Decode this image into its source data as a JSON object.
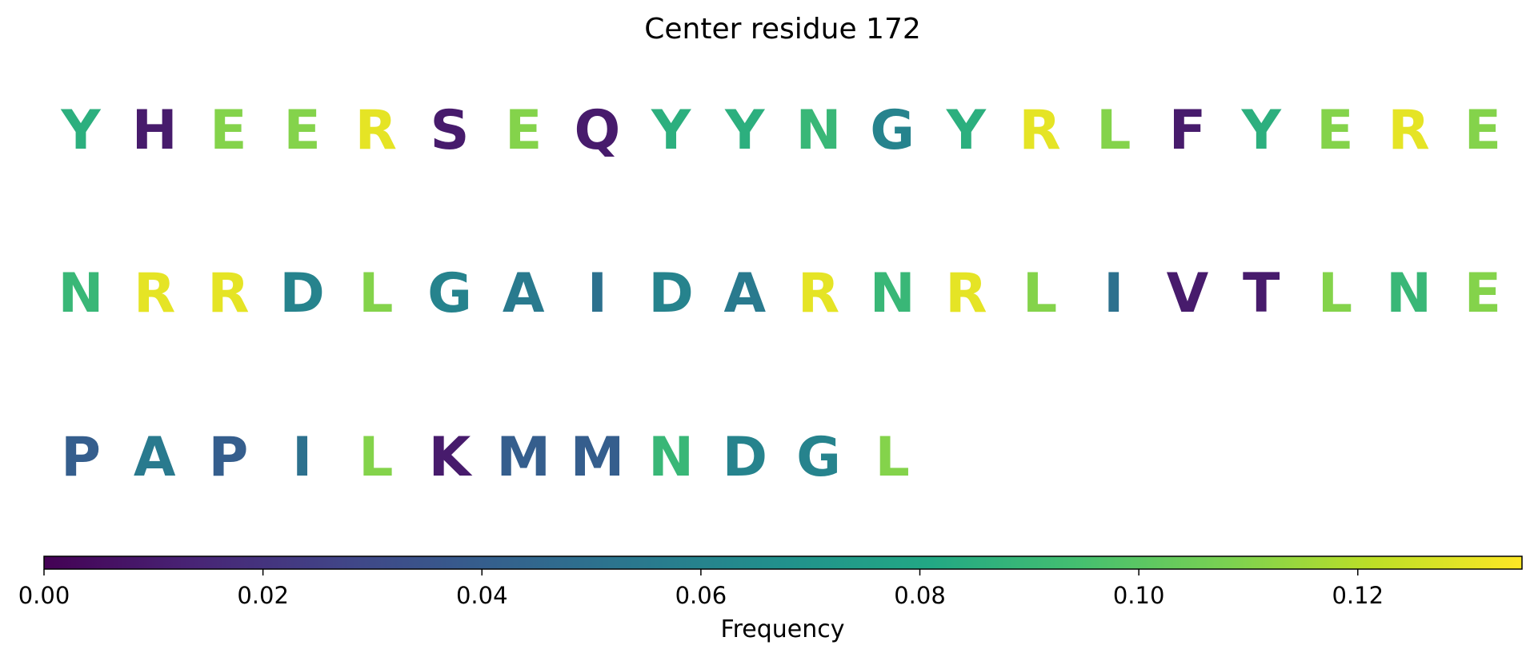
{
  "chart_data": {
    "type": "heatmap",
    "title": "Center residue 172",
    "rows": [
      {
        "residues": [
          "Y",
          "H",
          "E",
          "E",
          "R",
          "S",
          "E",
          "Q",
          "Y",
          "Y",
          "N",
          "G",
          "Y",
          "R",
          "L",
          "F",
          "Y",
          "E",
          "R",
          "E"
        ],
        "values": [
          0.085,
          0.01,
          0.11,
          0.11,
          0.13,
          0.01,
          0.11,
          0.01,
          0.085,
          0.085,
          0.09,
          0.06,
          0.085,
          0.13,
          0.11,
          0.01,
          0.085,
          0.11,
          0.13,
          0.11
        ]
      },
      {
        "residues": [
          "N",
          "R",
          "R",
          "D",
          "L",
          "G",
          "A",
          "I",
          "D",
          "A",
          "R",
          "N",
          "R",
          "L",
          "I",
          "V",
          "T",
          "L",
          "N",
          "E"
        ],
        "values": [
          0.09,
          0.13,
          0.13,
          0.06,
          0.11,
          0.06,
          0.055,
          0.05,
          0.06,
          0.055,
          0.13,
          0.09,
          0.13,
          0.11,
          0.05,
          0.01,
          0.01,
          0.11,
          0.09,
          0.11
        ]
      },
      {
        "residues": [
          "P",
          "A",
          "P",
          "I",
          "L",
          "K",
          "M",
          "M",
          "N",
          "D",
          "G",
          "L"
        ],
        "values": [
          0.04,
          0.055,
          0.04,
          0.05,
          0.11,
          0.01,
          0.04,
          0.04,
          0.09,
          0.06,
          0.06,
          0.11
        ]
      }
    ],
    "colorbar": {
      "label": "Frequency",
      "colormap": "viridis",
      "range": [
        0,
        0.135
      ],
      "ticks": [
        0.0,
        0.02,
        0.04,
        0.06,
        0.08,
        0.1,
        0.12
      ],
      "tick_labels": [
        "0.00",
        "0.02",
        "0.04",
        "0.06",
        "0.08",
        "0.10",
        "0.12"
      ]
    }
  }
}
